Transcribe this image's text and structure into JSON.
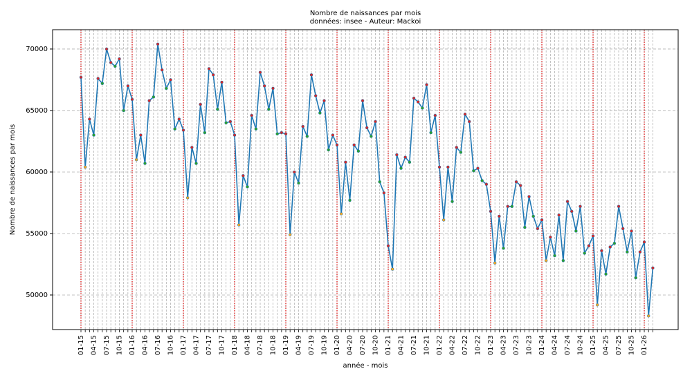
{
  "chart_data": {
    "type": "line",
    "title": "Nombre de naissances par mois",
    "subtitle": "données: insee - Auteur: Mackoi",
    "x_label": "année - mois",
    "y_label": "Nombre de naissances par mois",
    "categories": [
      "01-15",
      null,
      null,
      "04-15",
      null,
      null,
      "07-15",
      null,
      null,
      "10-15",
      null,
      null,
      "01-16",
      null,
      null,
      "04-16",
      null,
      null,
      "07-16",
      null,
      null,
      "10-16",
      null,
      null,
      "01-17",
      null,
      null,
      "04-17",
      null,
      null,
      "07-17",
      null,
      null,
      "10-17",
      null,
      null,
      "01-18",
      null,
      null,
      "04-18",
      null,
      null,
      "07-18",
      null,
      null,
      "10-18",
      null,
      null,
      "01-19",
      null,
      null,
      "04-19",
      null,
      null,
      "07-19",
      null,
      null,
      "10-19",
      null,
      null,
      "01-20",
      null,
      null,
      "04-20",
      null,
      null,
      "07-20",
      null,
      null,
      "10-20",
      null,
      null,
      "01-21",
      null,
      null,
      "04-21",
      null,
      null,
      "07-21",
      null,
      null,
      "10-21",
      null,
      null,
      "01-22",
      null,
      null,
      "04-22",
      null,
      null,
      "07-22",
      null,
      null,
      "10-22",
      null,
      null,
      "01-23",
      null,
      null,
      "04-23",
      null,
      null,
      "07-23",
      null,
      null,
      "10-23",
      null,
      null,
      "01-24",
      null,
      null,
      "04-24",
      null,
      null,
      "07-24",
      null,
      null,
      "10-24",
      null,
      null,
      "01-25",
      null,
      null,
      "04-25",
      null,
      null,
      "07-25",
      null,
      null,
      "10-25",
      null,
      null,
      "01-26",
      null,
      null
    ],
    "series": [
      {
        "color": "#1f77b4",
        "values": [
          67700,
          60400,
          64300,
          63000,
          67600,
          67200,
          70000,
          68900,
          68600,
          69200,
          65000,
          67000,
          65900,
          61000,
          63000,
          60700,
          65800,
          66100,
          70400,
          68300,
          66800,
          67500,
          63500,
          64300,
          63400,
          57900,
          62000,
          60700,
          65500,
          63200,
          68400,
          67900,
          65100,
          67300,
          64000,
          64100,
          63000,
          55700,
          59700,
          58800,
          64600,
          63500,
          68100,
          67000,
          65100,
          66800,
          63100,
          63200,
          63100,
          54900,
          60000,
          59100,
          63700,
          62900,
          67900,
          66200,
          64800,
          65800,
          61800,
          63000,
          62200,
          56600,
          60800,
          57700,
          62200,
          61700,
          65800,
          63600,
          62900,
          64100,
          59200,
          58300,
          54000,
          52100,
          61400,
          60300,
          61200,
          60800,
          66000,
          65700,
          65200,
          67100,
          63200,
          64600,
          60400,
          56100,
          60400,
          57600,
          62000,
          61600,
          64700,
          64100,
          60100,
          60300,
          59300,
          59000,
          56800,
          52600,
          56400,
          53800,
          57200,
          57200,
          59200,
          58900,
          55500,
          58000,
          56400,
          55400,
          56100,
          52800,
          54700,
          53200,
          56500,
          52800,
          57600,
          56800,
          55200,
          57200,
          53400,
          54000,
          54800,
          49200,
          53600,
          51700,
          53900,
          54200,
          57200,
          55400,
          53500,
          55200,
          51400,
          53500,
          54300,
          48300,
          52200
        ],
        "marker_colors": [
          "#d62728",
          "#f5a623",
          "#d62728",
          "#2ca02c",
          "#d62728",
          "#2ca02c",
          "#d62728",
          "#d62728",
          "#2ca02c",
          "#d62728",
          "#2ca02c",
          "#d62728",
          "#d62728",
          "#f5a623",
          "#d62728",
          "#2ca02c",
          "#d62728",
          "#2ca02c",
          "#d62728",
          "#d62728",
          "#2ca02c",
          "#d62728",
          "#2ca02c",
          "#d62728",
          "#d62728",
          "#f5a623",
          "#d62728",
          "#2ca02c",
          "#d62728",
          "#2ca02c",
          "#d62728",
          "#d62728",
          "#2ca02c",
          "#d62728",
          "#2ca02c",
          "#d62728",
          "#d62728",
          "#f5a623",
          "#d62728",
          "#2ca02c",
          "#d62728",
          "#2ca02c",
          "#d62728",
          "#d62728",
          "#2ca02c",
          "#d62728",
          "#2ca02c",
          "#d62728",
          "#d62728",
          "#f5a623",
          "#d62728",
          "#2ca02c",
          "#d62728",
          "#2ca02c",
          "#d62728",
          "#d62728",
          "#2ca02c",
          "#d62728",
          "#2ca02c",
          "#d62728",
          "#d62728",
          "#f5a623",
          "#d62728",
          "#2ca02c",
          "#d62728",
          "#2ca02c",
          "#d62728",
          "#d62728",
          "#2ca02c",
          "#d62728",
          "#2ca02c",
          "#d62728",
          "#d62728",
          "#f5a623",
          "#d62728",
          "#2ca02c",
          "#d62728",
          "#2ca02c",
          "#d62728",
          "#d62728",
          "#2ca02c",
          "#d62728",
          "#2ca02c",
          "#d62728",
          "#d62728",
          "#f5a623",
          "#d62728",
          "#2ca02c",
          "#d62728",
          "#2ca02c",
          "#d62728",
          "#d62728",
          "#2ca02c",
          "#d62728",
          "#2ca02c",
          "#d62728",
          "#d62728",
          "#f5a623",
          "#d62728",
          "#2ca02c",
          "#d62728",
          "#2ca02c",
          "#d62728",
          "#d62728",
          "#2ca02c",
          "#d62728",
          "#2ca02c",
          "#d62728",
          "#d62728",
          "#f5a623",
          "#d62728",
          "#2ca02c",
          "#d62728",
          "#2ca02c",
          "#d62728",
          "#d62728",
          "#2ca02c",
          "#d62728",
          "#2ca02c",
          "#d62728",
          "#d62728",
          "#f5a623",
          "#d62728",
          "#2ca02c",
          "#d62728",
          "#2ca02c",
          "#d62728",
          "#d62728",
          "#2ca02c",
          "#d62728",
          "#2ca02c",
          "#d62728",
          "#d62728",
          "#f5a623",
          "#d62728"
        ]
      }
    ],
    "ylim": [
      47190,
      71570
    ],
    "yticks": [
      50000,
      55000,
      60000,
      65000,
      70000
    ],
    "grid": true,
    "year_line_color": "#e00000"
  }
}
